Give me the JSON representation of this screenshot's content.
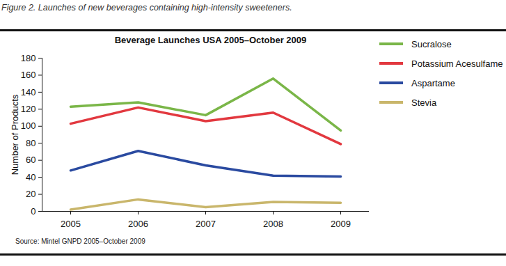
{
  "chart_data": {
    "type": "line",
    "caption": "Figure 2. Launches of new beverages containing high-intensity sweeteners.",
    "title": "Beverage Launches USA 2005–October 2009",
    "source": "Source: Mintel GNPD 2005–October 2009",
    "y_label": "Number of Products",
    "categories": [
      "2005",
      "2006",
      "2007",
      "2008",
      "2009"
    ],
    "series": [
      {
        "name": "Sucralose",
        "color": "#7ab648",
        "values": [
          123,
          128,
          113,
          156,
          95
        ]
      },
      {
        "name": "Potassium Acesulfame",
        "color": "#e2383f",
        "values": [
          103,
          122,
          106,
          116,
          79
        ]
      },
      {
        "name": "Aspartame",
        "color": "#2a4aa0",
        "values": [
          48,
          71,
          54,
          42,
          41
        ]
      },
      {
        "name": "Stevia",
        "color": "#c9b66b",
        "values": [
          2,
          14,
          5,
          11,
          10
        ]
      }
    ],
    "ylim": [
      0,
      180
    ],
    "yticks": [
      0,
      20,
      40,
      60,
      80,
      100,
      120,
      140,
      160,
      180
    ],
    "grid": false,
    "legend": "right"
  }
}
